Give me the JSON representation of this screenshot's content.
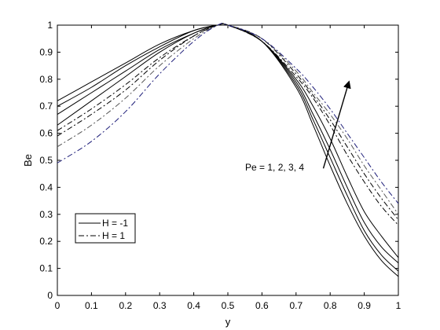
{
  "chart_data": {
    "type": "line",
    "title": "",
    "xlabel": "y",
    "ylabel": "Be",
    "xlim": [
      0,
      1
    ],
    "ylim": [
      0,
      1
    ],
    "xticks": [
      0,
      0.1,
      0.2,
      0.3,
      0.4,
      0.5,
      0.6,
      0.7,
      0.8,
      0.9,
      1
    ],
    "xtick_labels": [
      "0",
      "0.1",
      "0.2",
      "0.3",
      "0.4",
      "0.5",
      "0.6",
      "0.7",
      "0.8",
      "0.9",
      "1"
    ],
    "yticks": [
      0,
      0.1,
      0.2,
      0.3,
      0.4,
      0.5,
      0.6,
      0.7,
      0.8,
      0.9,
      1
    ],
    "ytick_labels": [
      "0",
      "0.1",
      "0.2",
      "0.3",
      "0.4",
      "0.5",
      "0.6",
      "0.7",
      "0.8",
      "0.9",
      "1"
    ],
    "grid": false,
    "legend": {
      "placement": "lower-left",
      "entries": [
        {
          "label": "H = -1",
          "style": "solid"
        },
        {
          "label": "H = 1",
          "style": "dashdot"
        }
      ]
    },
    "annotation": {
      "text": "Pe = 1, 2, 3, 4",
      "arrow_from": [
        0.78,
        0.47
      ],
      "arrow_to": [
        0.855,
        0.79
      ]
    },
    "series": [
      {
        "group": "H = -1",
        "style": "solid",
        "color": "#000000",
        "x": [
          0,
          0.1,
          0.2,
          0.3,
          0.4,
          0.47,
          0.5,
          0.6,
          0.7,
          0.75,
          0.8,
          0.85,
          0.9,
          0.95,
          1
        ],
        "y": [
          0.72,
          0.79,
          0.86,
          0.93,
          0.98,
          1.0,
          1.0,
          0.94,
          0.77,
          0.63,
          0.48,
          0.34,
          0.22,
          0.13,
          0.07
        ]
      },
      {
        "group": "H = -1",
        "style": "solid",
        "color": "#000000",
        "x": [
          0,
          0.1,
          0.2,
          0.3,
          0.4,
          0.47,
          0.5,
          0.6,
          0.7,
          0.75,
          0.8,
          0.85,
          0.9,
          0.95,
          1
        ],
        "y": [
          0.7,
          0.77,
          0.85,
          0.92,
          0.98,
          1.0,
          1.0,
          0.94,
          0.78,
          0.65,
          0.51,
          0.37,
          0.24,
          0.15,
          0.09
        ]
      },
      {
        "group": "H = -1",
        "style": "solid",
        "color": "#000000",
        "x": [
          0,
          0.1,
          0.2,
          0.3,
          0.4,
          0.47,
          0.5,
          0.6,
          0.7,
          0.75,
          0.8,
          0.85,
          0.9,
          0.95,
          1
        ],
        "y": [
          0.67,
          0.75,
          0.83,
          0.91,
          0.97,
          1.0,
          1.0,
          0.94,
          0.79,
          0.67,
          0.54,
          0.4,
          0.27,
          0.18,
          0.12
        ]
      },
      {
        "group": "H = -1",
        "style": "solid",
        "color": "#000000",
        "x": [
          0,
          0.1,
          0.2,
          0.3,
          0.4,
          0.47,
          0.5,
          0.6,
          0.7,
          0.75,
          0.8,
          0.85,
          0.9,
          0.95,
          1
        ],
        "y": [
          0.63,
          0.72,
          0.81,
          0.9,
          0.97,
          1.0,
          1.0,
          0.94,
          0.8,
          0.7,
          0.58,
          0.44,
          0.31,
          0.22,
          0.14
        ]
      },
      {
        "group": "H = 1",
        "style": "dashdot",
        "color": "#000000",
        "x": [
          0,
          0.1,
          0.2,
          0.3,
          0.4,
          0.47,
          0.5,
          0.6,
          0.7,
          0.75,
          0.8,
          0.85,
          0.9,
          0.95,
          1
        ],
        "y": [
          0.61,
          0.69,
          0.78,
          0.88,
          0.96,
          1.0,
          1.0,
          0.94,
          0.81,
          0.73,
          0.63,
          0.52,
          0.42,
          0.33,
          0.26
        ]
      },
      {
        "group": "H = 1",
        "style": "dashdot",
        "color": "#000000",
        "x": [
          0,
          0.1,
          0.2,
          0.3,
          0.4,
          0.47,
          0.5,
          0.6,
          0.7,
          0.75,
          0.8,
          0.85,
          0.9,
          0.95,
          1
        ],
        "y": [
          0.59,
          0.67,
          0.76,
          0.87,
          0.96,
          1.0,
          1.0,
          0.95,
          0.82,
          0.74,
          0.65,
          0.55,
          0.45,
          0.36,
          0.28
        ]
      },
      {
        "group": "H = 1",
        "style": "dashdot",
        "color": "#555555",
        "x": [
          0,
          0.1,
          0.2,
          0.3,
          0.4,
          0.47,
          0.5,
          0.6,
          0.7,
          0.75,
          0.8,
          0.85,
          0.9,
          0.95,
          1
        ],
        "y": [
          0.55,
          0.63,
          0.73,
          0.85,
          0.95,
          1.0,
          1.0,
          0.95,
          0.83,
          0.75,
          0.67,
          0.58,
          0.48,
          0.39,
          0.3
        ]
      },
      {
        "group": "H = 1",
        "style": "dashdot",
        "color": "#1f1f7a",
        "x": [
          0,
          0.1,
          0.2,
          0.3,
          0.4,
          0.47,
          0.5,
          0.6,
          0.7,
          0.75,
          0.8,
          0.85,
          0.9,
          0.95,
          1
        ],
        "y": [
          0.49,
          0.57,
          0.68,
          0.82,
          0.94,
          1.0,
          1.0,
          0.95,
          0.84,
          0.77,
          0.69,
          0.6,
          0.51,
          0.42,
          0.34
        ]
      }
    ]
  }
}
